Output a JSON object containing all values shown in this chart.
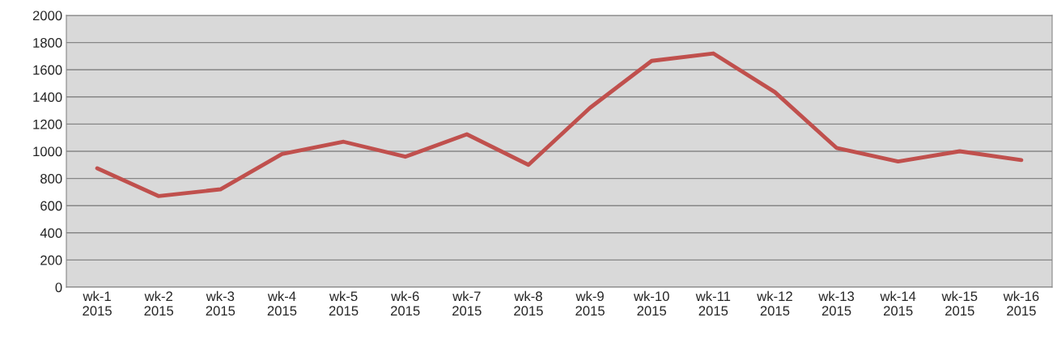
{
  "chart_data": {
    "type": "line",
    "categories": [
      "wk-1\n2015",
      "wk-2\n2015",
      "wk-3\n2015",
      "wk-4\n2015",
      "wk-5\n2015",
      "wk-6\n2015",
      "wk-7\n2015",
      "wk-8\n2015",
      "wk-9\n2015",
      "wk-10\n2015",
      "wk-11\n2015",
      "wk-12\n2015",
      "wk-13\n2015",
      "wk-14\n2015",
      "wk-15\n2015",
      "wk-16\n2015"
    ],
    "series": [
      {
        "color": "#c0504d",
        "values": [
          875,
          670,
          720,
          980,
          1070,
          960,
          1125,
          900,
          1320,
          1665,
          1720,
          1435,
          1025,
          925,
          1000,
          935
        ]
      }
    ],
    "ylim": [
      0,
      2000
    ],
    "yticks": [
      0,
      200,
      400,
      600,
      800,
      1000,
      1200,
      1400,
      1600,
      1800,
      2000
    ],
    "grid": "y",
    "marker": "none",
    "line_style": "solid"
  }
}
